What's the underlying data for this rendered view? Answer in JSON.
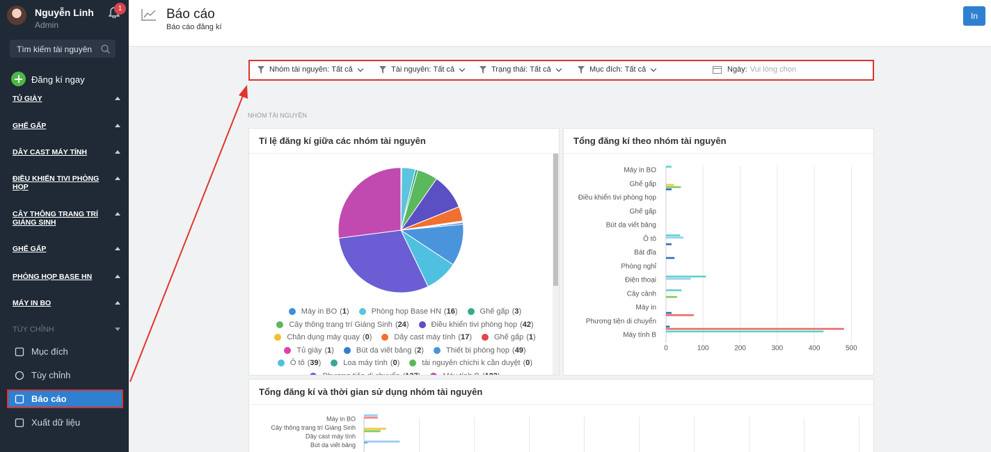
{
  "sidebar": {
    "user": {
      "name": "Nguyễn Linh",
      "role": "Admin",
      "notifications": 1
    },
    "search_placeholder": "Tìm kiếm tài nguyên",
    "register": "Đăng kí ngay",
    "groups": [
      "TỦ GIÀY",
      "GHẾ GẤP",
      "DÂY CAST MÁY TÍNH",
      "ĐIỀU KHIỂN TIVI PHÒNG HỌP",
      "CÂY THÔNG TRANG TRÍ GIÁNG SINH",
      "GHẾ GẤP",
      "PHÒNG HỌP BASE HN",
      "MÁY IN BO"
    ],
    "custom_section": "TÙY CHỈNH",
    "items": [
      "Mục đích",
      "Tùy chỉnh",
      "Báo cáo",
      "Xuất dữ liệu"
    ],
    "active_item": 2
  },
  "header": {
    "title": "Báo cáo",
    "subtitle": "Báo cáo đăng kí",
    "print": "In"
  },
  "filters": [
    {
      "label": "Nhóm tài nguyên:",
      "value": "Tất cả"
    },
    {
      "label": "Tài nguyên:",
      "value": "Tất cả"
    },
    {
      "label": "Trạng thái:",
      "value": "Tất cả"
    },
    {
      "label": "Mục đích:",
      "value": "Tất cả"
    }
  ],
  "date_filter": {
    "label": "Ngày:",
    "placeholder": "Vui lòng chọn"
  },
  "section_label": "NHÓM TÀI NGUYÊN",
  "chart_data": [
    {
      "type": "pie",
      "title": "Tỉ lệ đăng kí giữa các nhóm tài nguyên",
      "categories": [
        "Máy in BO",
        "Phòng họp Base HN",
        "Ghế gấp",
        "Cây thông trang trí Giáng Sinh",
        "Điều khiển tivi phòng họp",
        "Chân dụng máy quay",
        "Dây cast máy tính",
        "Ghế gấp",
        "Tủ giày",
        "Bút dạ viết bảng",
        "Thiết bị phòng họp",
        "Ô tô",
        "Loa máy tính",
        "tài nguyên chichi k cần duyệt",
        "Phương tiện di chuyển",
        "Máy tính B"
      ],
      "values": [
        1,
        16,
        3,
        24,
        42,
        0,
        17,
        1,
        1,
        2,
        49,
        39,
        0,
        0,
        137,
        123
      ],
      "colors": [
        "#3b8fd9",
        "#5bc4de",
        "#3aaa8f",
        "#5cb85c",
        "#5b4fc4",
        "#f0c030",
        "#f07030",
        "#e0474c",
        "#e040b0",
        "#2f7fd0",
        "#4a94dc",
        "#4fc0e0",
        "#3aa890",
        "#5cb85c",
        "#6b5dd3",
        "#c04ab0"
      ]
    },
    {
      "type": "bar",
      "orientation": "horizontal",
      "title": "Tổng đăng kí theo nhóm tài nguyên",
      "categories": [
        "Máy in BO",
        "Ghế gấp",
        "Điều khiển tivi phòng họp",
        "Ghế gấp",
        "Bút dạ viết bảng",
        "Ô tô",
        "Bát đĩa",
        "Phòng nghỉ",
        "Điện thoại",
        "Cây cảnh",
        "Máy in",
        "Phương tiện di chuyển",
        "Máy tính B"
      ],
      "series": [
        {
          "color": "#5fd3c7",
          "values": [
            15,
            0,
            0,
            0,
            0,
            38,
            0,
            0,
            108,
            42,
            0,
            0,
            425
          ]
        },
        {
          "color": "#93cef5",
          "values": [
            0,
            0,
            0,
            0,
            0,
            47,
            0,
            0,
            67,
            0,
            0,
            0,
            0
          ]
        },
        {
          "color": "#f2c94c",
          "values": [
            0,
            22,
            0,
            0,
            0,
            0,
            0,
            0,
            0,
            0,
            0,
            0,
            0
          ]
        },
        {
          "color": "#82c95b",
          "values": [
            0,
            40,
            0,
            0,
            0,
            0,
            0,
            0,
            0,
            30,
            0,
            0,
            0
          ]
        },
        {
          "color": "#2f6db5",
          "values": [
            0,
            15,
            0,
            0,
            0,
            15,
            23,
            0,
            0,
            0,
            15,
            10,
            0
          ]
        },
        {
          "color": "#e8696a",
          "values": [
            0,
            0,
            0,
            0,
            0,
            0,
            0,
            0,
            0,
            0,
            75,
            480,
            0
          ]
        }
      ],
      "xlim": [
        0,
        520
      ],
      "xticks": [
        0,
        100,
        200,
        300,
        400,
        500
      ],
      "grid": true
    },
    {
      "type": "bar",
      "orientation": "horizontal",
      "title": "Tổng đăng kí và thời gian sử dụng nhóm tài nguyên",
      "categories": [
        "Máy in BO",
        "Cây thông trang trí Giáng Sinh",
        "Dây cast máy tính",
        "Bút dạ viết bảng"
      ],
      "series": [
        {
          "color": "#93cef5",
          "values": [
            5,
            0,
            0,
            13
          ]
        },
        {
          "color": "#f08a8a",
          "values": [
            5,
            0,
            0,
            0
          ]
        },
        {
          "color": "#f2c94c",
          "values": [
            0,
            8,
            0,
            0
          ]
        },
        {
          "color": "#82c95b",
          "values": [
            0,
            6,
            0,
            0
          ]
        },
        {
          "color": "#2f6db5",
          "values": [
            0,
            0,
            1.3,
            0
          ]
        },
        {
          "color": "#5fd3c7",
          "values": [
            0,
            0,
            0,
            5
          ]
        }
      ],
      "xlim": [
        0,
        180
      ]
    }
  ]
}
